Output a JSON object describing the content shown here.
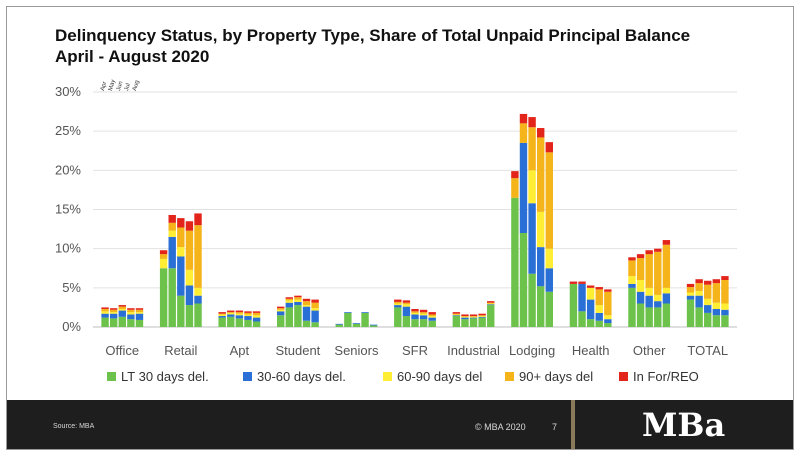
{
  "slide": {
    "title_line1": "Delinquency Status, by Property Type, Share of Total Unpaid Principal Balance",
    "title_line2": "April - August 2020",
    "month_labels": [
      "Apr",
      "May",
      "Jun",
      "Jul",
      "Aug"
    ],
    "source": "Source: MBA",
    "copyright": "© MBA 2020",
    "page_number": "7",
    "logo_text": "MBa"
  },
  "chart_data": {
    "type": "bar",
    "stacked": true,
    "ylim": [
      0,
      30
    ],
    "yticks": [
      "0%",
      "5%",
      "10%",
      "15%",
      "20%",
      "25%",
      "30%"
    ],
    "grid": true,
    "legend_position": "bottom",
    "categories": [
      "Office",
      "Retail",
      "Apt",
      "Student",
      "Seniors",
      "SFR",
      "Industrial",
      "Lodging",
      "Health",
      "Other",
      "TOTAL"
    ],
    "months": [
      "Apr",
      "May",
      "Jun",
      "Jul",
      "Aug"
    ],
    "series": [
      {
        "name": "LT 30 days del.",
        "color": "#6cc24a",
        "values": [
          [
            1.2,
            1.1,
            1.3,
            1.0,
            0.9
          ],
          [
            7.5,
            7.5,
            4.0,
            2.8,
            3.0
          ],
          [
            1.2,
            1.3,
            1.1,
            0.9,
            0.7
          ],
          [
            1.5,
            2.5,
            2.8,
            0.8,
            0.6
          ],
          [
            0.3,
            1.8,
            0.4,
            1.8,
            0.2
          ],
          [
            2.5,
            1.4,
            1.0,
            1.0,
            0.8
          ],
          [
            1.4,
            1.0,
            1.1,
            1.2,
            2.8
          ],
          [
            16.5,
            12.0,
            6.8,
            5.2,
            4.5
          ],
          [
            5.5,
            2.0,
            1.0,
            0.8,
            0.5
          ],
          [
            5.0,
            3.0,
            2.5,
            2.5,
            3.0
          ],
          [
            3.5,
            2.5,
            1.8,
            1.5,
            1.5
          ]
        ]
      },
      {
        "name": "30-60 days del.",
        "color": "#2a6fd6",
        "values": [
          [
            0.5,
            0.6,
            0.8,
            0.6,
            0.8
          ],
          [
            0.0,
            4.0,
            5.0,
            2.5,
            1.0
          ],
          [
            0.2,
            0.3,
            0.4,
            0.5,
            0.5
          ],
          [
            0.5,
            0.6,
            0.4,
            1.8,
            1.5
          ],
          [
            0.1,
            0.1,
            0.1,
            0.1,
            0.1
          ],
          [
            0.3,
            1.2,
            0.6,
            0.5,
            0.4
          ],
          [
            0.1,
            0.2,
            0.1,
            0.1,
            0.1
          ],
          [
            0.0,
            11.5,
            9.0,
            5.0,
            3.0
          ],
          [
            0.0,
            3.5,
            2.5,
            1.0,
            0.5
          ],
          [
            0.5,
            1.5,
            1.5,
            0.8,
            1.3
          ],
          [
            0.5,
            1.5,
            1.0,
            0.8,
            0.7
          ]
        ]
      },
      {
        "name": "60-90 days del",
        "color": "#ffee33",
        "values": [
          [
            0.3,
            0.2,
            0.2,
            0.3,
            0.2
          ],
          [
            1.2,
            0.8,
            1.2,
            2.0,
            1.0
          ],
          [
            0.2,
            0.2,
            0.2,
            0.2,
            0.3
          ],
          [
            0.2,
            0.3,
            0.3,
            0.2,
            0.3
          ],
          [
            0.0,
            0.0,
            0.0,
            0.0,
            0.0
          ],
          [
            0.2,
            0.3,
            0.2,
            0.2,
            0.2
          ],
          [
            0.1,
            0.1,
            0.1,
            0.1,
            0.1
          ],
          [
            0.0,
            0.0,
            4.2,
            4.5,
            2.5
          ],
          [
            0.0,
            0.0,
            1.5,
            1.0,
            0.5
          ],
          [
            1.0,
            1.5,
            1.0,
            0.8,
            0.7
          ],
          [
            0.4,
            0.6,
            0.8,
            0.8,
            0.8
          ]
        ]
      },
      {
        "name": "90+ days del",
        "color": "#f4b41a",
        "values": [
          [
            0.3,
            0.3,
            0.3,
            0.3,
            0.3
          ],
          [
            0.6,
            1.0,
            2.5,
            5.0,
            8.0
          ],
          [
            0.1,
            0.1,
            0.2,
            0.2,
            0.3
          ],
          [
            0.2,
            0.2,
            0.3,
            0.5,
            0.7
          ],
          [
            0.0,
            0.0,
            0.0,
            0.0,
            0.0
          ],
          [
            0.2,
            0.2,
            0.2,
            0.2,
            0.2
          ],
          [
            0.1,
            0.1,
            0.1,
            0.1,
            0.1
          ],
          [
            2.5,
            2.5,
            5.5,
            9.5,
            12.3
          ],
          [
            0.0,
            0.0,
            0.0,
            2.0,
            3.0
          ],
          [
            2.0,
            2.8,
            4.3,
            5.5,
            5.5
          ],
          [
            0.7,
            1.0,
            1.8,
            2.5,
            3.0
          ]
        ]
      },
      {
        "name": "In For/REO",
        "color": "#e3241b",
        "values": [
          [
            0.2,
            0.2,
            0.2,
            0.2,
            0.2
          ],
          [
            0.5,
            1.0,
            1.2,
            1.2,
            1.5
          ],
          [
            0.2,
            0.2,
            0.2,
            0.2,
            0.2
          ],
          [
            0.2,
            0.2,
            0.2,
            0.3,
            0.4
          ],
          [
            0.0,
            0.0,
            0.0,
            0.0,
            0.0
          ],
          [
            0.3,
            0.3,
            0.3,
            0.3,
            0.3
          ],
          [
            0.2,
            0.2,
            0.2,
            0.2,
            0.2
          ],
          [
            0.9,
            1.2,
            1.3,
            1.2,
            1.3
          ],
          [
            0.3,
            0.3,
            0.3,
            0.3,
            0.3
          ],
          [
            0.4,
            0.5,
            0.5,
            0.4,
            0.6
          ],
          [
            0.4,
            0.5,
            0.5,
            0.5,
            0.5
          ]
        ]
      }
    ]
  }
}
